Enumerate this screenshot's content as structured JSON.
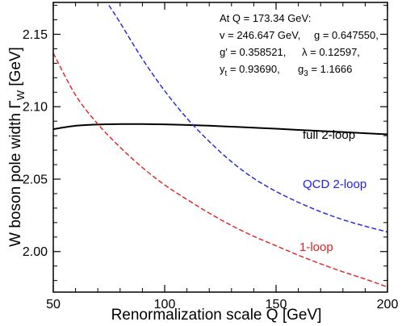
{
  "chart_data": {
    "type": "line",
    "xlabel": "Renormalization scale Q  [GeV]",
    "ylabel_main": "W boson pole width  Γ",
    "ylabel_sub": "W",
    "ylabel_unit": "  [GeV]",
    "xlim": [
      50,
      200
    ],
    "ylim": [
      1.972,
      2.172
    ],
    "x_ticks": [
      50,
      100,
      150,
      200
    ],
    "y_ticks": [
      2.0,
      2.05,
      2.1,
      2.15
    ],
    "y_tick_labels": [
      "2.00",
      "2.05",
      "2.10",
      "2.15"
    ],
    "grid": false,
    "annotation": {
      "line1": "At Q = 173.34 GeV:",
      "line2a": "v = 246.647 GeV,",
      "line2b": "g = 0.647550,",
      "line3a": "g′ = 0.358521,",
      "line3b": "λ = 0.12597,",
      "line4a_base": "y",
      "line4a_sub": "t",
      "line4a_rest": " = 0.93690,",
      "line4b_base": "g",
      "line4b_sub": "3",
      "line4b_rest": " = 1.1666"
    },
    "series": [
      {
        "name": "full 2-loop",
        "color": "#000000",
        "dashed": false,
        "x": [
          50,
          60,
          70,
          80,
          90,
          100,
          110,
          120,
          130,
          140,
          150,
          160,
          170,
          180,
          190,
          200
        ],
        "y": [
          2.0845,
          2.0868,
          2.0877,
          2.088,
          2.088,
          2.0878,
          2.0874,
          2.0869,
          2.0862,
          2.0855,
          2.0848,
          2.084,
          2.0832,
          2.0825,
          2.0817,
          2.0809
        ]
      },
      {
        "name": "QCD 2-loop",
        "color": "#2020e0",
        "dashed": true,
        "x": [
          75,
          80,
          90,
          100,
          110,
          120,
          130,
          140,
          150,
          160,
          170,
          180,
          190,
          200
        ],
        "y": [
          2.17,
          2.158,
          2.133,
          2.111,
          2.092,
          2.076,
          2.062,
          2.0505,
          2.0415,
          2.034,
          2.0275,
          2.022,
          2.0175,
          2.0135
        ]
      },
      {
        "name": "1-loop",
        "color": "#e02020",
        "dashed": true,
        "x": [
          50,
          60,
          70,
          80,
          90,
          100,
          110,
          120,
          130,
          140,
          150,
          160,
          170,
          180,
          190,
          200
        ],
        "y": [
          2.137,
          2.108,
          2.088,
          2.072,
          2.058,
          2.046,
          2.036,
          2.0265,
          2.018,
          2.0105,
          2.004,
          1.9975,
          1.9915,
          1.986,
          1.981,
          1.9755
        ]
      }
    ]
  }
}
